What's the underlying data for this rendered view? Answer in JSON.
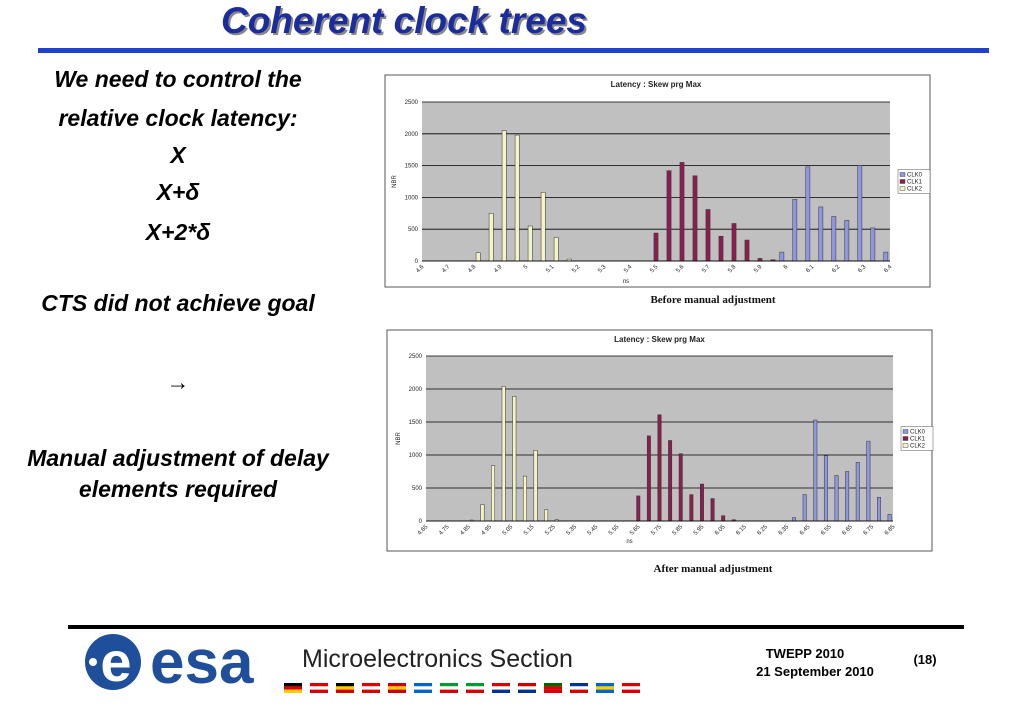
{
  "title": "Coherent clock trees",
  "left_text": [
    "We need to control the",
    "relative clock latency:",
    "X",
    "X+δ",
    "X+2*δ",
    "CTS did not achieve goal",
    "→",
    "Manual adjustment of delay",
    "elements required"
  ],
  "chart_data": [
    {
      "type": "bar",
      "title": "Latency : Skew prg Max",
      "caption": "Before manual adjustment",
      "x_label": "ns",
      "y_label": "NBR",
      "categories": [
        "4.6",
        null,
        "4.7",
        null,
        "4.8",
        null,
        "4.9",
        null,
        "5",
        null,
        "5.1",
        null,
        "5.2",
        null,
        "5.3",
        null,
        "5.4",
        null,
        "5.5",
        null,
        "5.6",
        null,
        "5.7",
        null,
        "5.8",
        null,
        "5.9",
        null,
        "6",
        null,
        "6.1",
        null,
        "6.2",
        null,
        "6.3",
        null,
        "6.4"
      ],
      "series": [
        {
          "name": "CLK0",
          "color": "#8f96e0",
          "values": [
            0,
            0,
            0,
            0,
            0,
            0,
            0,
            0,
            0,
            0,
            0,
            0,
            0,
            0,
            0,
            0,
            0,
            0,
            0,
            0,
            0,
            0,
            0,
            0,
            0,
            0,
            0,
            0,
            140,
            970,
            1480,
            850,
            700,
            640,
            1500,
            520,
            140
          ]
        },
        {
          "name": "CLK1",
          "color": "#8b1e4e",
          "values": [
            0,
            0,
            0,
            0,
            0,
            0,
            0,
            0,
            0,
            0,
            0,
            0,
            0,
            0,
            0,
            0,
            0,
            0,
            440,
            1420,
            1550,
            1340,
            810,
            390,
            590,
            330,
            40,
            20,
            0,
            0,
            0,
            0,
            0,
            0,
            0,
            0,
            0
          ]
        },
        {
          "name": "CLK2",
          "color": "#f6f3c6",
          "values": [
            0,
            0,
            0,
            0,
            130,
            750,
            2050,
            1980,
            550,
            1080,
            370,
            30,
            0,
            0,
            0,
            0,
            0,
            0,
            0,
            0,
            0,
            0,
            0,
            0,
            0,
            0,
            0,
            0,
            0,
            0,
            0,
            0,
            0,
            0,
            0,
            0,
            0
          ]
        }
      ],
      "ylim": [
        0,
        2500
      ],
      "yticks": [
        0,
        500,
        1000,
        1500,
        2000,
        2500
      ],
      "grid": true,
      "legend": "right"
    },
    {
      "type": "bar",
      "title": "Latency : Skew prg Max",
      "caption": "After manual adjustment",
      "x_label": "ns",
      "y_label": "NBR",
      "categories": [
        "4.65",
        null,
        "4.75",
        null,
        "4.85",
        null,
        "4.95",
        null,
        "5.05",
        null,
        "5.15",
        null,
        "5.25",
        null,
        "5.35",
        null,
        "5.45",
        null,
        "5.55",
        null,
        "5.65",
        null,
        "5.75",
        null,
        "5.85",
        null,
        "5.95",
        null,
        "6.05",
        null,
        "6.15",
        null,
        "6.25",
        null,
        "6.35",
        null,
        "6.45",
        null,
        "6.55",
        null,
        "6.65",
        null,
        "6.75",
        null,
        "6.85"
      ],
      "series": [
        {
          "name": "CLK0",
          "color": "#8f96e0",
          "values": [
            0,
            0,
            0,
            0,
            0,
            0,
            0,
            0,
            0,
            0,
            0,
            0,
            0,
            0,
            0,
            0,
            0,
            0,
            0,
            0,
            0,
            0,
            0,
            0,
            0,
            0,
            0,
            0,
            0,
            0,
            0,
            0,
            0,
            0,
            0,
            50,
            400,
            1530,
            990,
            690,
            750,
            890,
            1210,
            360,
            100
          ]
        },
        {
          "name": "CLK1",
          "color": "#8b1e4e",
          "values": [
            0,
            0,
            0,
            0,
            0,
            0,
            0,
            0,
            0,
            0,
            0,
            0,
            0,
            0,
            0,
            0,
            0,
            0,
            0,
            0,
            380,
            1290,
            1610,
            1220,
            1020,
            400,
            560,
            340,
            80,
            20,
            0,
            0,
            0,
            0,
            0,
            0,
            0,
            0,
            0,
            0,
            0,
            0,
            0,
            0,
            0
          ]
        },
        {
          "name": "CLK2",
          "color": "#f6f3c6",
          "values": [
            0,
            0,
            0,
            0,
            15,
            250,
            840,
            2040,
            1890,
            680,
            1070,
            170,
            20,
            0,
            0,
            0,
            0,
            0,
            0,
            0,
            0,
            0,
            0,
            0,
            0,
            0,
            0,
            0,
            0,
            0,
            0,
            0,
            0,
            0,
            0,
            0,
            0,
            0,
            0,
            0,
            0,
            0,
            0,
            0,
            0
          ]
        }
      ],
      "ylim": [
        0,
        2500
      ],
      "yticks": [
        0,
        500,
        1000,
        1500,
        2000,
        2500
      ],
      "grid": true,
      "legend": "right"
    }
  ],
  "footer": {
    "logo": "esa",
    "section": "Microelectronics Section",
    "event": "TWEPP 2010",
    "date": "21 September 2010",
    "page": "(18)"
  }
}
